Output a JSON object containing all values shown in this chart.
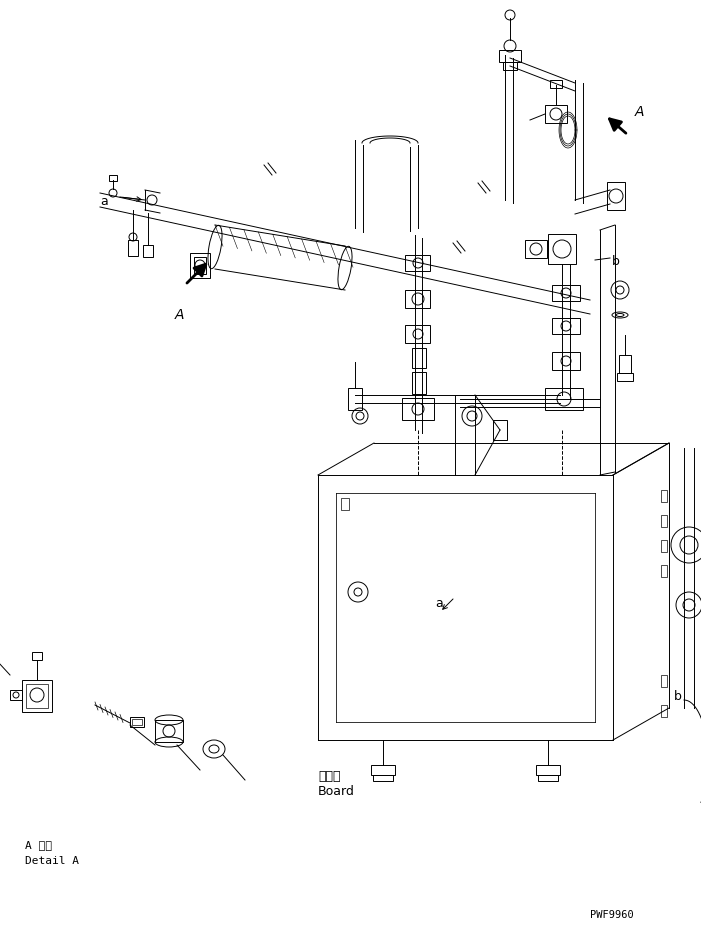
{
  "bg_color": "#ffffff",
  "line_color": "#000000",
  "fig_width": 7.01,
  "fig_height": 9.27,
  "dpi": 100,
  "part_code": "PWF9960",
  "label_a_detail_jp": "A 詳細",
  "label_a_detail_en": "Detail A",
  "label_board_jp": "ボード",
  "label_board_en": "Board",
  "label_a": "a",
  "label_b": "b",
  "label_A": "A"
}
